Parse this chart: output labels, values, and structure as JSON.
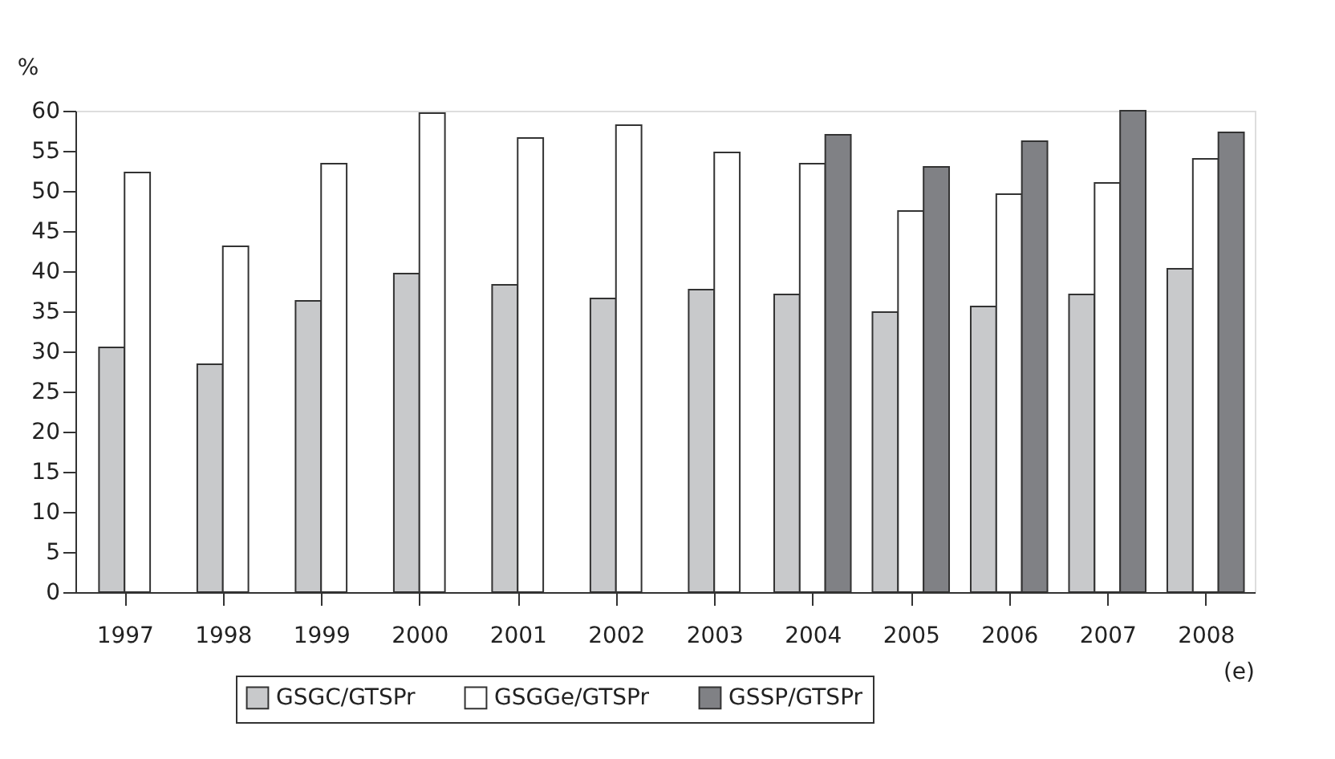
{
  "chart_data": {
    "type": "bar",
    "ylabel": "%",
    "categories": [
      "1997",
      "1998",
      "1999",
      "2000",
      "2001",
      "2002",
      "2003",
      "2004",
      "2005",
      "2006",
      "2007",
      "2008"
    ],
    "series": [
      {
        "name": "GSGC/GTSPr",
        "color": "#c8c9cb",
        "values": [
          30.5,
          28.4,
          36.3,
          39.7,
          38.3,
          36.6,
          37.7,
          37.1,
          34.9,
          35.6,
          37.1,
          40.3
        ]
      },
      {
        "name": "GSGGe/GTSPr",
        "color": "#ffffff",
        "values": [
          52.3,
          43.1,
          53.4,
          59.7,
          56.6,
          58.2,
          54.8,
          53.4,
          47.5,
          49.6,
          51.0,
          54.0
        ]
      },
      {
        "name": "GSSP/GTSPr",
        "color": "#808185",
        "values": [
          null,
          null,
          null,
          null,
          null,
          null,
          null,
          57.0,
          53.0,
          56.2,
          60.0,
          57.3
        ]
      }
    ],
    "ylim": [
      0,
      60
    ],
    "yticks": [
      0,
      5,
      10,
      15,
      20,
      25,
      30,
      35,
      40,
      45,
      50,
      55,
      60
    ],
    "grid": false,
    "legend": "bottom",
    "annotations": [
      "(e)"
    ]
  }
}
